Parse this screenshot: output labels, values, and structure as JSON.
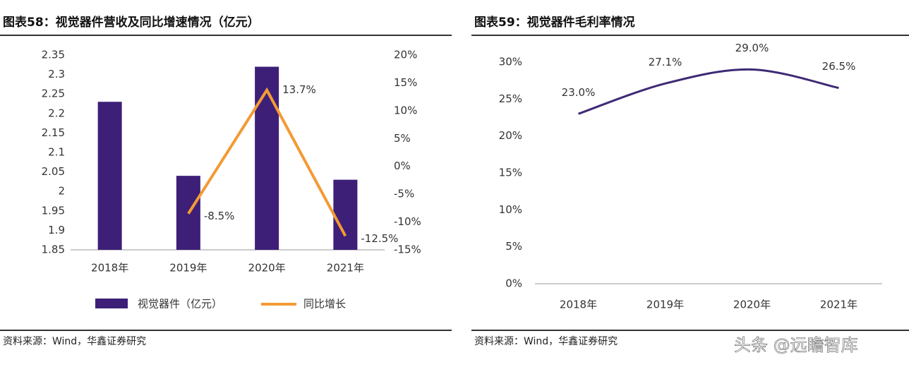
{
  "chart_data": [
    {
      "type": "combo",
      "title": "图表58：视觉器件营收及同比增速情况（亿元）",
      "categories": [
        "2018年",
        "2019年",
        "2020年",
        "2021年"
      ],
      "series": [
        {
          "name": "视觉器件（亿元）",
          "type": "bar",
          "color": "#3d1f78",
          "values": [
            2.23,
            2.04,
            2.32,
            2.03
          ]
        },
        {
          "name": "同比增长",
          "type": "line",
          "axis": "y2",
          "color": "#f39a34",
          "values": [
            null,
            -8.5,
            13.7,
            -12.5
          ],
          "value_labels": [
            null,
            "-8.5%",
            "13.7%",
            "-12.5%"
          ]
        }
      ],
      "ylim": [
        1.85,
        2.35
      ],
      "yticks": [
        1.85,
        1.9,
        1.95,
        2,
        2.05,
        2.1,
        2.15,
        2.2,
        2.25,
        2.3,
        2.35
      ],
      "y2lim": [
        -15,
        20
      ],
      "y2ticks": [
        {
          "value": -15,
          "label": "-15%"
        },
        {
          "value": -10,
          "label": "-10%"
        },
        {
          "value": -5,
          "label": "-5%"
        },
        {
          "value": 0,
          "label": "0%"
        },
        {
          "value": 5,
          "label": "5%"
        },
        {
          "value": 10,
          "label": "10%"
        },
        {
          "value": 15,
          "label": "15%"
        },
        {
          "value": 20,
          "label": "20%"
        }
      ],
      "legend": "bottom",
      "source": "资料来源：Wind，华鑫证券研究"
    },
    {
      "type": "line",
      "title": "图表59：视觉器件毛利率情况",
      "categories": [
        "2018年",
        "2019年",
        "2020年",
        "2021年"
      ],
      "series": [
        {
          "name": "毛利率",
          "color": "#3f2a75",
          "values": [
            23.0,
            27.1,
            29.0,
            26.5
          ],
          "value_labels": [
            "23.0%",
            "27.1%",
            "29.0%",
            "26.5%"
          ]
        }
      ],
      "ylim": [
        0,
        30
      ],
      "yticks": [
        {
          "value": 0,
          "label": "0%"
        },
        {
          "value": 5,
          "label": "5%"
        },
        {
          "value": 10,
          "label": "10%"
        },
        {
          "value": 15,
          "label": "15%"
        },
        {
          "value": 20,
          "label": "20%"
        },
        {
          "value": 25,
          "label": "25%"
        },
        {
          "value": 30,
          "label": "30%"
        }
      ],
      "source": "资料来源：Wind，华鑫证券研究"
    }
  ],
  "watermark": "头条 @远瞻智库"
}
